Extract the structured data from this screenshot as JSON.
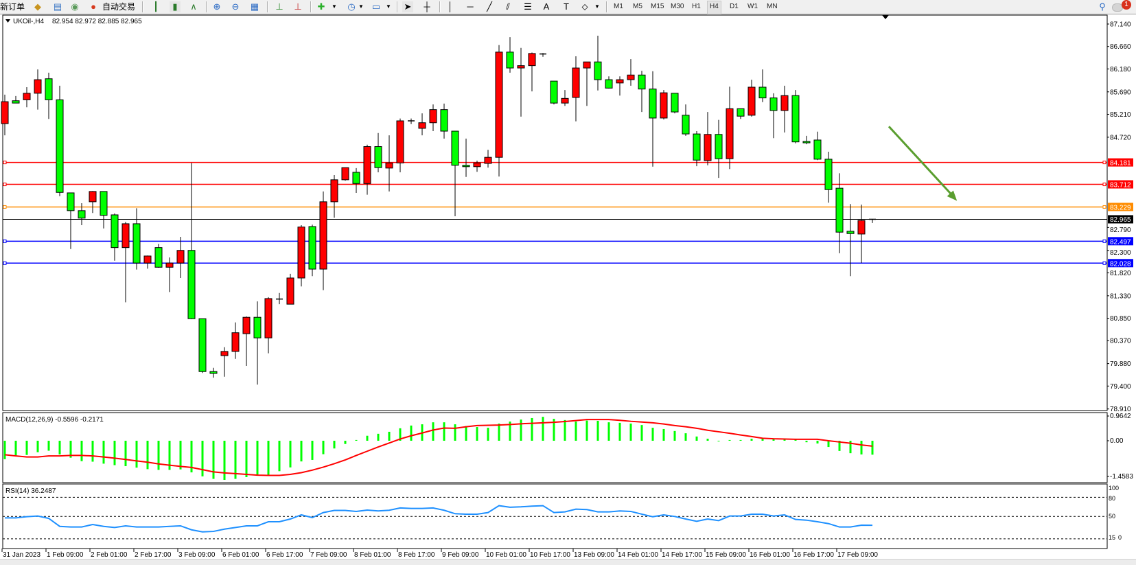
{
  "toolbar": {
    "new_order": "新订单",
    "auto_trading": "自动交易",
    "icons": [
      "new-order-icon",
      "history-center-icon",
      "market-watch-icon",
      "signals-icon",
      "auto-trading-icon",
      "bar-chart-icon",
      "candlestick-chart-icon",
      "line-chart-icon",
      "zoom-in-icon",
      "zoom-out-icon",
      "tile-windows-icon",
      "auto-scroll-icon",
      "chart-shift-icon",
      "indicators-icon",
      "periods-icon",
      "templates-icon",
      "cursor-icon",
      "crosshair-icon",
      "vertical-line-icon",
      "horizontal-line-icon",
      "trendline-icon",
      "equidistant-channel-icon",
      "fibonacci-icon",
      "text-icon",
      "text-label-icon",
      "arrows-icon",
      "search-icon",
      "notifications-icon"
    ],
    "timeframes": [
      "M1",
      "M5",
      "M15",
      "M30",
      "H1",
      "H4",
      "D1",
      "W1",
      "MN"
    ],
    "selected_timeframe": "H4",
    "notification_count": "1"
  },
  "header": {
    "symbol": "UKOil-,H4",
    "ohlc": "82.954 82.972 82.885 82.965"
  },
  "colors": {
    "bull_candle": "#ff0000",
    "bear_candle": "#00ff00",
    "resistance": "#ff0000",
    "pivot": "#ff8c00",
    "support": "#0000ff",
    "macd_hist": "#00ff00",
    "macd_signal": "#ff0000",
    "rsi_line": "#1e90ff",
    "arrow": "#5a9e2f"
  },
  "price_axis": [
    "87.140",
    "86.660",
    "86.180",
    "85.690",
    "85.210",
    "84.720",
    "82.790",
    "82.300",
    "81.820",
    "81.330",
    "80.850",
    "80.370",
    "79.880",
    "79.400",
    "78.910"
  ],
  "levels": [
    {
      "price": 84.181,
      "label": "84.181",
      "color": "#ff0000"
    },
    {
      "price": 83.712,
      "label": "83.712",
      "color": "#ff0000"
    },
    {
      "price": 83.229,
      "label": "83.229",
      "color": "#ff8c00"
    },
    {
      "price": 82.497,
      "label": "82.497",
      "color": "#0000ff"
    },
    {
      "price": 82.028,
      "label": "82.028",
      "color": "#0000ff"
    }
  ],
  "current_price": {
    "price": 82.965,
    "label": "82.965"
  },
  "annotation_arrow": {
    "from": [
      80.5,
      84.95
    ],
    "to": [
      86.7,
      83.36
    ],
    "direction": "down",
    "color": "#5a9e2f"
  },
  "chart_data": {
    "type": "candlestick",
    "symbol": "UKOil-",
    "timeframe": "H4",
    "ylim": [
      78.91,
      87.14
    ],
    "time_labels": [
      "31 Jan 2023",
      "1 Feb 09:00",
      "2 Feb 01:00",
      "2 Feb 17:00",
      "3 Feb 09:00",
      "6 Feb 01:00",
      "6 Feb 17:00",
      "7 Feb 09:00",
      "8 Feb 01:00",
      "8 Feb 17:00",
      "9 Feb 09:00",
      "10 Feb 01:00",
      "10 Feb 17:00",
      "13 Feb 09:00",
      "14 Feb 01:00",
      "14 Feb 17:00",
      "15 Feb 09:00",
      "16 Feb 01:00",
      "16 Feb 17:00",
      "17 Feb 09:00"
    ],
    "ohlc": [
      [
        85.01,
        85.63,
        84.76,
        85.48
      ],
      [
        85.5,
        85.6,
        85.45,
        85.45
      ],
      [
        85.52,
        85.79,
        85.36,
        85.66
      ],
      [
        85.66,
        86.17,
        85.31,
        85.95
      ],
      [
        85.97,
        86.1,
        85.11,
        85.52
      ],
      [
        85.52,
        85.82,
        83.46,
        83.54
      ],
      [
        83.53,
        83.53,
        82.33,
        83.15
      ],
      [
        83.15,
        83.31,
        82.84,
        82.99
      ],
      [
        83.34,
        83.57,
        83.1,
        83.56
      ],
      [
        83.56,
        83.56,
        82.77,
        83.05
      ],
      [
        83.06,
        83.09,
        82.08,
        82.36
      ],
      [
        82.36,
        82.91,
        81.19,
        82.87
      ],
      [
        82.87,
        83.2,
        81.89,
        82.03
      ],
      [
        82.03,
        82.19,
        81.91,
        82.18
      ],
      [
        82.36,
        82.44,
        81.93,
        81.94
      ],
      [
        81.94,
        82.15,
        81.41,
        82.03
      ],
      [
        82.03,
        82.59,
        81.71,
        82.3
      ],
      [
        82.3,
        84.17,
        80.83,
        80.84
      ],
      [
        80.84,
        80.84,
        79.68,
        79.71
      ],
      [
        79.71,
        79.79,
        79.58,
        79.67
      ],
      [
        80.05,
        80.23,
        79.6,
        80.14
      ],
      [
        80.14,
        80.76,
        79.98,
        80.54
      ],
      [
        80.52,
        80.89,
        79.83,
        80.87
      ],
      [
        80.87,
        81.21,
        79.43,
        80.43
      ],
      [
        80.43,
        81.3,
        80.1,
        81.27
      ],
      [
        81.26,
        81.39,
        81.15,
        81.26
      ],
      [
        81.15,
        81.8,
        81.15,
        81.71
      ],
      [
        81.71,
        82.84,
        81.53,
        82.8
      ],
      [
        82.81,
        82.85,
        81.75,
        81.9
      ],
      [
        81.9,
        83.56,
        81.45,
        83.34
      ],
      [
        83.34,
        83.91,
        83.0,
        83.81
      ],
      [
        83.81,
        84.07,
        83.79,
        84.07
      ],
      [
        83.97,
        84.06,
        83.53,
        83.73
      ],
      [
        83.73,
        84.56,
        83.49,
        84.52
      ],
      [
        84.52,
        84.81,
        83.97,
        84.07
      ],
      [
        84.06,
        84.76,
        83.56,
        84.17
      ],
      [
        84.17,
        85.12,
        83.97,
        85.07
      ],
      [
        85.07,
        85.12,
        85.0,
        85.07
      ],
      [
        84.91,
        85.23,
        84.76,
        85.03
      ],
      [
        85.03,
        85.42,
        84.85,
        85.31
      ],
      [
        85.31,
        85.44,
        84.69,
        84.85
      ],
      [
        84.85,
        84.85,
        83.03,
        84.12
      ],
      [
        84.12,
        84.69,
        83.87,
        84.09
      ],
      [
        84.09,
        84.22,
        83.98,
        84.17
      ],
      [
        84.16,
        84.45,
        84.07,
        84.29
      ],
      [
        84.29,
        86.69,
        83.88,
        86.54
      ],
      [
        86.54,
        86.86,
        86.1,
        86.2
      ],
      [
        86.2,
        86.63,
        85.16,
        86.25
      ],
      [
        86.25,
        86.53,
        85.7,
        86.51
      ],
      [
        86.5,
        86.52,
        86.44,
        86.5
      ],
      [
        85.92,
        85.92,
        85.42,
        85.45
      ],
      [
        85.45,
        85.73,
        85.39,
        85.55
      ],
      [
        85.57,
        86.45,
        85.06,
        86.2
      ],
      [
        86.2,
        86.33,
        85.39,
        86.33
      ],
      [
        86.33,
        86.89,
        85.72,
        85.95
      ],
      [
        85.95,
        86.02,
        85.76,
        85.77
      ],
      [
        85.88,
        86.02,
        85.61,
        85.95
      ],
      [
        85.95,
        86.39,
        85.82,
        86.05
      ],
      [
        86.05,
        86.14,
        85.26,
        85.75
      ],
      [
        85.75,
        86.13,
        84.09,
        85.13
      ],
      [
        85.13,
        85.73,
        85.1,
        85.67
      ],
      [
        85.66,
        85.66,
        85.23,
        85.26
      ],
      [
        85.19,
        85.42,
        84.75,
        84.79
      ],
      [
        84.79,
        84.85,
        84.1,
        84.23
      ],
      [
        84.22,
        85.26,
        84.12,
        84.78
      ],
      [
        84.78,
        85.09,
        83.85,
        84.26
      ],
      [
        84.26,
        85.8,
        84.04,
        85.33
      ],
      [
        85.33,
        85.33,
        85.11,
        85.17
      ],
      [
        85.19,
        85.95,
        85.16,
        85.79
      ],
      [
        85.79,
        86.17,
        85.47,
        85.56
      ],
      [
        85.56,
        85.66,
        84.7,
        85.29
      ],
      [
        85.29,
        85.82,
        84.82,
        85.61
      ],
      [
        85.61,
        85.73,
        84.59,
        84.62
      ],
      [
        84.63,
        84.75,
        84.57,
        84.6
      ],
      [
        84.66,
        84.84,
        84.23,
        84.25
      ],
      [
        84.25,
        84.41,
        83.32,
        83.6
      ],
      [
        83.63,
        83.95,
        82.24,
        82.69
      ],
      [
        82.71,
        83.29,
        81.75,
        82.66
      ],
      [
        82.65,
        83.28,
        82.03,
        82.94
      ],
      [
        82.954,
        82.972,
        82.885,
        82.965
      ]
    ],
    "macd": {
      "label": "MACD(12,26,9) -0.5596 -0.2171",
      "axis_labels": [
        "0.9642",
        "0.00",
        "-1.4583"
      ],
      "ylim": [
        -1.68,
        1.13
      ],
      "histogram": [
        -0.74,
        -0.59,
        -0.57,
        -0.46,
        -0.4,
        -0.55,
        -0.68,
        -0.82,
        -0.84,
        -0.92,
        -0.98,
        -1.02,
        -1.08,
        -1.14,
        -1.17,
        -1.17,
        -1.15,
        -1.27,
        -1.43,
        -1.53,
        -1.57,
        -1.53,
        -1.46,
        -1.38,
        -1.38,
        -1.22,
        -1.07,
        -0.83,
        -0.77,
        -0.54,
        -0.31,
        -0.13,
        0.03,
        0.2,
        0.28,
        0.36,
        0.5,
        0.61,
        0.66,
        0.74,
        0.74,
        0.66,
        0.59,
        0.55,
        0.52,
        0.69,
        0.77,
        0.85,
        0.91,
        0.96,
        0.88,
        0.83,
        0.77,
        0.81,
        0.8,
        0.74,
        0.72,
        0.69,
        0.63,
        0.52,
        0.47,
        0.39,
        0.3,
        0.17,
        0.08,
        0.0,
        0.03,
        0.03,
        0.08,
        0.08,
        0.06,
        0.06,
        0.06,
        -0.06,
        -0.11,
        -0.25,
        -0.41,
        -0.5,
        -0.55,
        -0.5596
      ],
      "signal": [
        -0.56,
        -0.61,
        -0.65,
        -0.65,
        -0.61,
        -0.61,
        -0.59,
        -0.59,
        -0.61,
        -0.65,
        -0.7,
        -0.75,
        -0.81,
        -0.86,
        -0.93,
        -0.98,
        -1.03,
        -1.07,
        -1.16,
        -1.25,
        -1.29,
        -1.32,
        -1.35,
        -1.38,
        -1.39,
        -1.39,
        -1.35,
        -1.28,
        -1.18,
        -1.06,
        -0.92,
        -0.77,
        -0.59,
        -0.42,
        -0.25,
        -0.09,
        0.07,
        0.2,
        0.31,
        0.43,
        0.51,
        0.5,
        0.56,
        0.61,
        0.62,
        0.63,
        0.65,
        0.68,
        0.7,
        0.72,
        0.74,
        0.77,
        0.81,
        0.85,
        0.85,
        0.85,
        0.82,
        0.78,
        0.75,
        0.72,
        0.67,
        0.61,
        0.56,
        0.5,
        0.42,
        0.36,
        0.3,
        0.23,
        0.17,
        0.1,
        0.08,
        0.07,
        0.06,
        0.06,
        0.06,
        0.0,
        -0.05,
        -0.1,
        -0.17,
        -0.2171
      ]
    },
    "rsi": {
      "label": "RSI(14) 36.2487",
      "axis_labels": [
        "100",
        "80",
        "50",
        "15",
        "0"
      ],
      "levels": [
        80,
        50,
        15
      ],
      "ylim": [
        0,
        100
      ],
      "values": [
        47.8,
        47.8,
        49.6,
        50.7,
        47.0,
        34.5,
        33.5,
        33.5,
        37.4,
        34.5,
        32.7,
        35.3,
        33.5,
        33.5,
        33.5,
        34.5,
        35.3,
        29.1,
        25.9,
        26.6,
        30.2,
        32.7,
        35.3,
        35.3,
        41.7,
        41.7,
        46.0,
        52.5,
        48.2,
        56.1,
        59.4,
        59.4,
        57.9,
        60.0,
        58.6,
        59.7,
        63.3,
        62.6,
        62.6,
        63.3,
        59.7,
        54.3,
        53.6,
        53.6,
        56.1,
        66.9,
        64.4,
        65.1,
        66.2,
        66.9,
        56.1,
        57.2,
        61.5,
        60.8,
        57.2,
        57.2,
        58.6,
        57.9,
        53.6,
        49.6,
        52.5,
        50.0,
        46.0,
        42.4,
        46.0,
        43.5,
        50.7,
        50.7,
        53.6,
        53.6,
        50.7,
        52.5,
        45.3,
        44.2,
        41.7,
        38.8,
        33.5,
        33.5,
        36.3,
        36.2487
      ]
    }
  }
}
